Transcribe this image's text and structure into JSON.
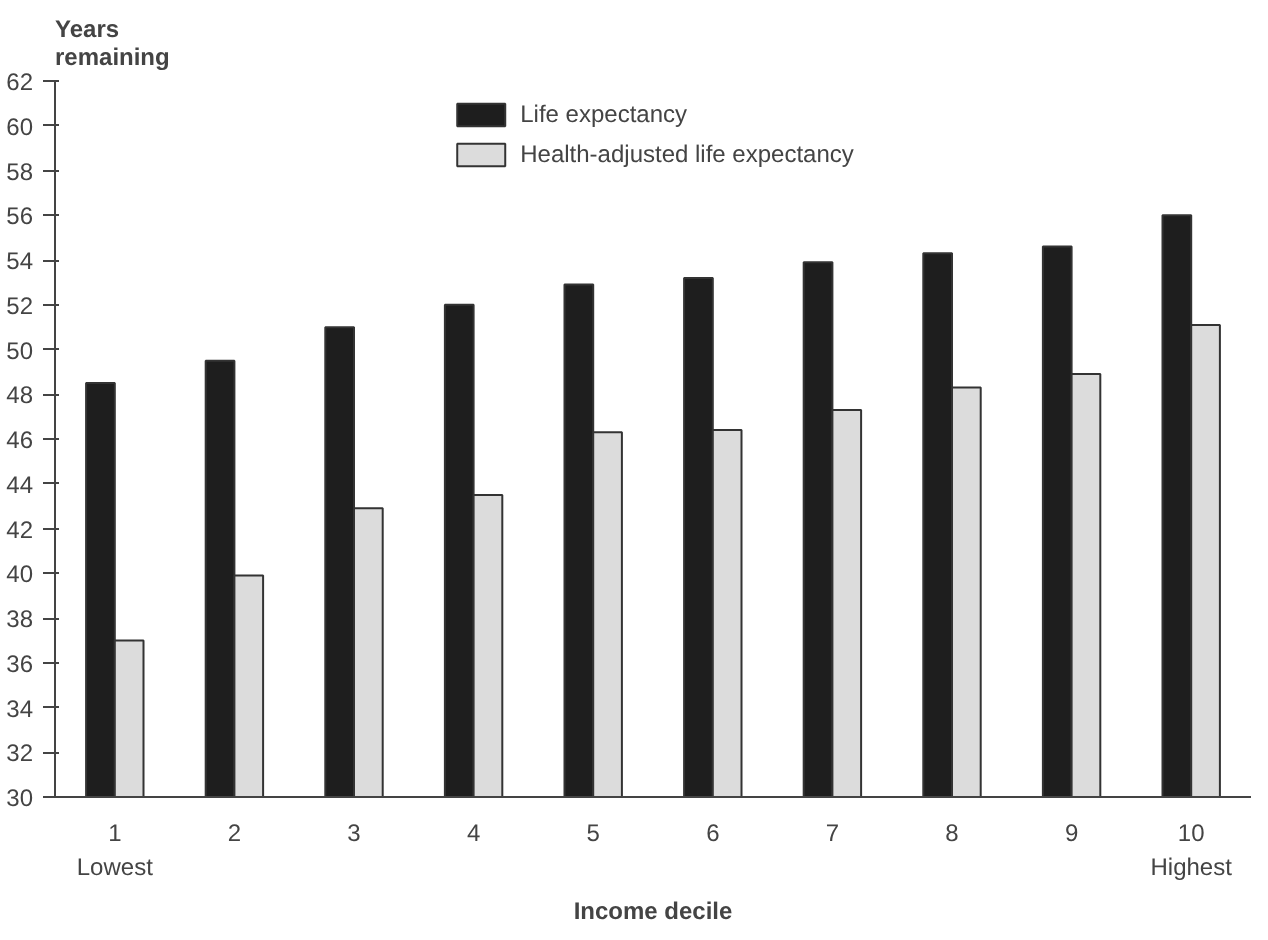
{
  "chart_data": {
    "type": "bar",
    "ylabel": "Years\nremaining",
    "xlabel": "Income decile",
    "categories": [
      "1\nLowest",
      "2",
      "3",
      "4",
      "5",
      "6",
      "7",
      "8",
      "9",
      "10\nHighest"
    ],
    "series": [
      {
        "name": "Life expectancy",
        "color": "#1e1e1e",
        "values": [
          48.5,
          49.5,
          51.0,
          52.0,
          52.9,
          53.2,
          53.9,
          54.3,
          54.6,
          56.0
        ]
      },
      {
        "name": "Health-adjusted life expectancy",
        "color": "#dcdcdc",
        "values": [
          37.0,
          39.9,
          42.9,
          43.5,
          46.3,
          46.4,
          47.3,
          48.3,
          48.9,
          51.1
        ]
      }
    ],
    "ylim": [
      30,
      62
    ],
    "yticks": [
      30,
      32,
      34,
      36,
      38,
      40,
      42,
      44,
      46,
      48,
      50,
      52,
      54,
      56,
      58,
      60,
      62
    ],
    "legend": "top",
    "grid": false
  }
}
